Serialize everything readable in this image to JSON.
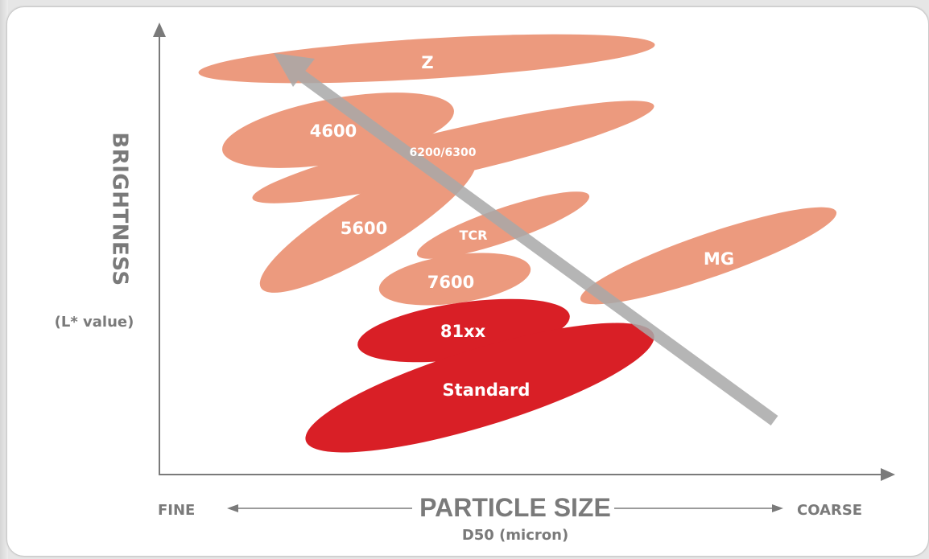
{
  "diagram": {
    "y_axis": {
      "title": "BRIGHTNESS",
      "unit": "(L* value)"
    },
    "x_axis": {
      "title": "PARTICLE SIZE",
      "unit": "D50 (micron)",
      "low_label": "FINE",
      "high_label": "COARSE"
    },
    "grades": [
      {
        "label": "Z"
      },
      {
        "label": "4600"
      },
      {
        "label": "6200/6300"
      },
      {
        "label": "5600"
      },
      {
        "label": "TCR"
      },
      {
        "label": "MG"
      },
      {
        "label": "7600"
      },
      {
        "label": "81xx"
      },
      {
        "label": "Standard"
      }
    ],
    "colors": {
      "light_grade": "#ec9a7e",
      "dark_grade": "#d91f26",
      "trend_arrow": "#a9a9a9",
      "axis": "#7a7a7a",
      "label_text": "#ffffff",
      "axis_text": "#7a7a7a"
    }
  }
}
